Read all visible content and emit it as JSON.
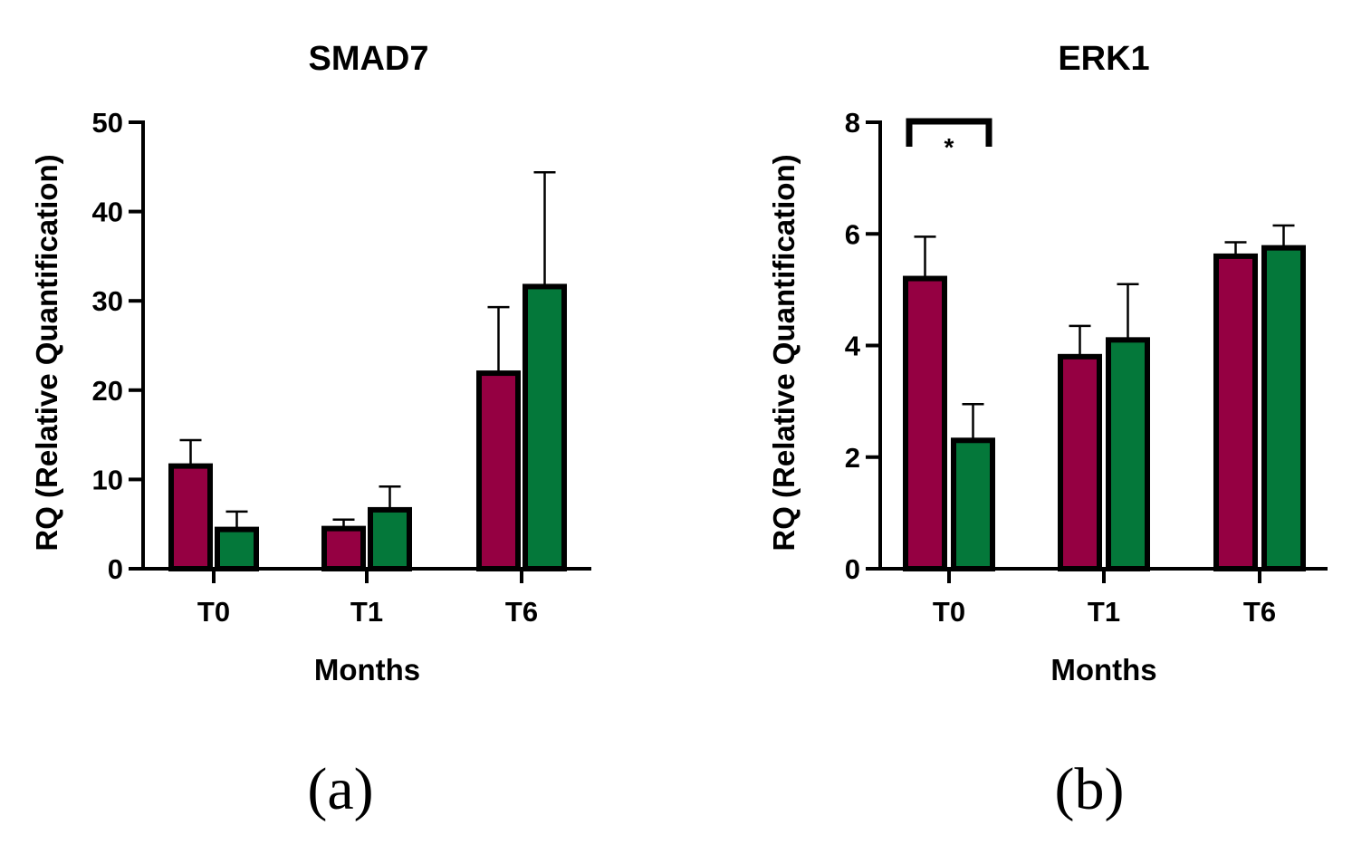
{
  "chart_data": [
    {
      "type": "bar",
      "title": "SMAD7",
      "xlabel": "Months",
      "ylabel": "RQ (Relative Quantification)",
      "categories": [
        "T0",
        "T1",
        "T6"
      ],
      "ylim": [
        0,
        50
      ],
      "yticks": [
        0,
        10,
        20,
        30,
        40,
        50
      ],
      "panel_label": "(a)",
      "series": [
        {
          "color": "#950042",
          "values": [
            11.5,
            4.5,
            21.9
          ],
          "errors": [
            2.9,
            1.0,
            7.4
          ]
        },
        {
          "color": "#04783A",
          "values": [
            4.4,
            6.6,
            31.6
          ],
          "errors": [
            2.0,
            2.6,
            12.8
          ]
        }
      ],
      "significance": []
    },
    {
      "type": "bar",
      "title": "ERK1",
      "xlabel": "Months",
      "ylabel": "RQ (Relative Quantification)",
      "categories": [
        "T0",
        "T1",
        "T6"
      ],
      "ylim": [
        0,
        8
      ],
      "yticks": [
        0,
        2,
        4,
        6,
        8
      ],
      "panel_label": "(b)",
      "series": [
        {
          "color": "#950042",
          "values": [
            5.2,
            3.8,
            5.6
          ],
          "errors": [
            0.75,
            0.55,
            0.25
          ]
        },
        {
          "color": "#04783A",
          "values": [
            2.3,
            4.1,
            5.75
          ],
          "errors": [
            0.65,
            1.0,
            0.4
          ]
        }
      ],
      "significance": [
        {
          "category": "T0",
          "label": "*"
        }
      ]
    }
  ]
}
